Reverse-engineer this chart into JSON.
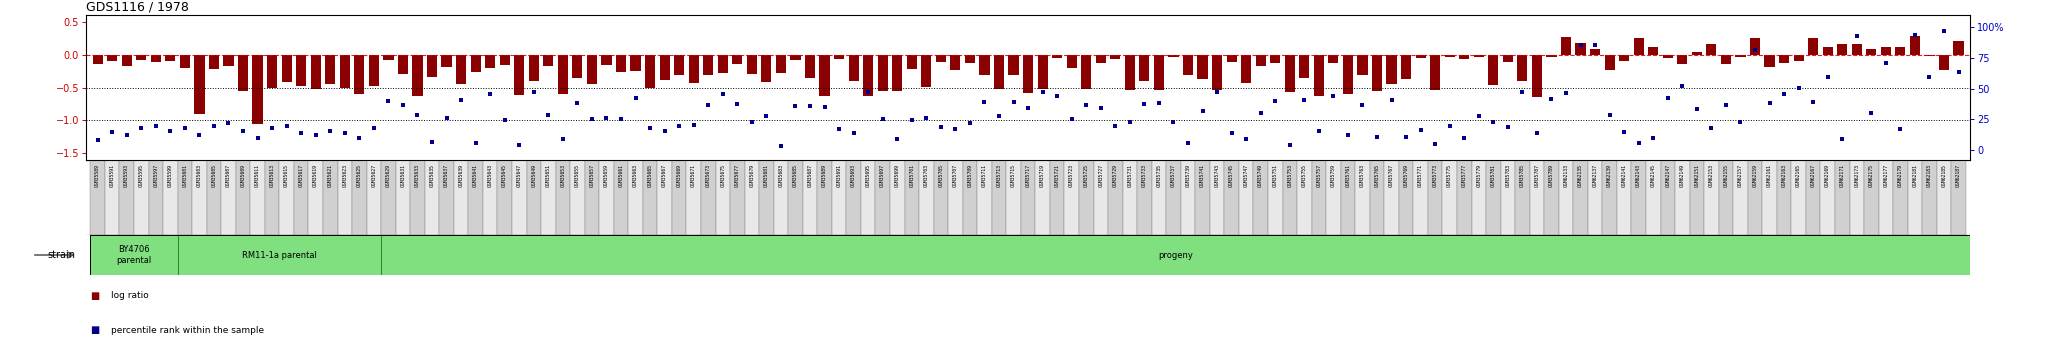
{
  "title": "GDS1116 / 1978",
  "title_color": "#000000",
  "bar_color": "#8B0000",
  "dot_color": "#00008B",
  "bg_color": "#ffffff",
  "group1_label": "BY4706\nparental",
  "group2_label": "RM11-1a parental",
  "group3_label": "progeny",
  "group_bg_color": "#80E080",
  "group_border_color": "#208020",
  "strain_label": "strain",
  "legend_log_ratio": "log ratio",
  "legend_percentile": "percentile rank within the sample",
  "left_yticks": [
    0.5,
    0.0,
    -0.5,
    -1.0,
    -1.5
  ],
  "left_ycolor": "#CC0000",
  "right_ytick_labels": [
    "0",
    "25",
    "50",
    "75",
    "100%"
  ],
  "right_yticks": [
    0,
    25,
    50,
    75,
    100
  ],
  "right_ycolor": "#0000CC",
  "left_ylim": [
    -1.6,
    0.6
  ],
  "right_ylim": [
    -8,
    110
  ],
  "n_by4706": 6,
  "n_rm11": 14,
  "left_samples": [
    "GSM35589",
    "GSM35591",
    "GSM35593",
    "GSM35595",
    "GSM35597",
    "GSM35599",
    "GSM35601",
    "GSM35603",
    "GSM35605",
    "GSM35607",
    "GSM35609",
    "GSM35611",
    "GSM35613",
    "GSM35615",
    "GSM35617",
    "GSM35619",
    "GSM35621",
    "GSM35623",
    "GSM35625",
    "GSM35627",
    "GSM35629",
    "GSM35631",
    "GSM35633",
    "GSM35635",
    "GSM35637",
    "GSM35639",
    "GSM35641",
    "GSM35643",
    "GSM35645",
    "GSM35647",
    "GSM35649",
    "GSM35651",
    "GSM35653",
    "GSM35655",
    "GSM35657",
    "GSM35659",
    "GSM35661",
    "GSM35663",
    "GSM35665",
    "GSM35667",
    "GSM35669",
    "GSM35671",
    "GSM35673",
    "GSM35675",
    "GSM35677",
    "GSM35679",
    "GSM35681",
    "GSM35683",
    "GSM35685",
    "GSM35687",
    "GSM35689",
    "GSM35691",
    "GSM35693",
    "GSM35695",
    "GSM35697",
    "GSM35699",
    "GSM35701",
    "GSM35703",
    "GSM35705",
    "GSM35707",
    "GSM35709",
    "GSM35711",
    "GSM35713",
    "GSM35715",
    "GSM35717",
    "GSM35719",
    "GSM35721",
    "GSM35723",
    "GSM35725",
    "GSM35727",
    "GSM35729",
    "GSM35731",
    "GSM35733",
    "GSM35735",
    "GSM35737",
    "GSM35739",
    "GSM35741",
    "GSM35743",
    "GSM35745",
    "GSM35747",
    "GSM35749",
    "GSM35751",
    "GSM35753",
    "GSM35755",
    "GSM35757",
    "GSM35759",
    "GSM35761",
    "GSM35763",
    "GSM35765",
    "GSM35767",
    "GSM35769",
    "GSM35771",
    "GSM35773",
    "GSM35775",
    "GSM35777",
    "GSM35779",
    "GSM35781",
    "GSM35783",
    "GSM35785",
    "GSM35787",
    "GSM35789"
  ],
  "right_samples": [
    "GSM62133",
    "GSM62135",
    "GSM62137",
    "GSM62139",
    "GSM62141",
    "GSM62143",
    "GSM62145",
    "GSM62147",
    "GSM62149",
    "GSM62151",
    "GSM62153",
    "GSM62155",
    "GSM62157",
    "GSM62159",
    "GSM62161",
    "GSM62163",
    "GSM62165",
    "GSM62167",
    "GSM62169",
    "GSM62171",
    "GSM62173",
    "GSM62175",
    "GSM62177",
    "GSM62179",
    "GSM62181",
    "GSM62183",
    "GSM62185",
    "GSM62187"
  ],
  "ticklabel_bg": "#D0D0D0",
  "ticklabel_border": "#808080"
}
